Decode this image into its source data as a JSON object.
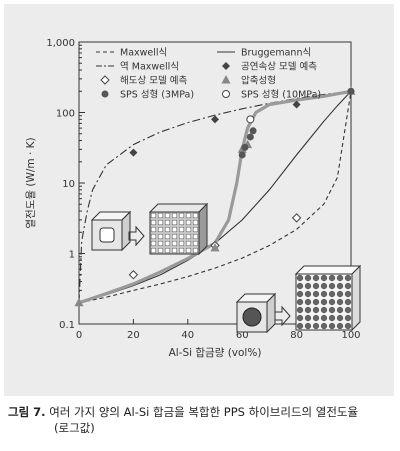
{
  "chart_data": {
    "type": "line",
    "y_scale": "log",
    "xlabel": "Al-Si 합금량 (vol%)",
    "ylabel": "열전도율 (W/m · K)",
    "xlim": [
      0,
      100
    ],
    "ylim": [
      0.1,
      1000
    ],
    "x_ticks": [
      "0",
      "20",
      "40",
      "60",
      "80",
      "100"
    ],
    "y_ticks": [
      "0.1",
      "1",
      "10",
      "100",
      "1,000"
    ],
    "grid": false,
    "legend_position": "top",
    "legend": [
      {
        "key": "maxwell",
        "label": "Maxwell식",
        "marker": "dashed-line"
      },
      {
        "key": "bruggemann",
        "label": "Bruggemann식",
        "marker": "solid-line"
      },
      {
        "key": "inv_maxwell",
        "label": "역 Maxwell식",
        "marker": "dashdot-line"
      },
      {
        "key": "cont",
        "label": "공연속상 모델 예측",
        "marker": "filled-diamond"
      },
      {
        "key": "disp",
        "label": "해도상 모델 예측",
        "marker": "open-diamond"
      },
      {
        "key": "press",
        "label": "압축성형",
        "marker": "filled-triangle"
      },
      {
        "key": "sps3",
        "label": "SPS 성형 (3MPa)",
        "marker": "filled-circle"
      },
      {
        "key": "sps10",
        "label": "SPS 성형 (10MPa)",
        "marker": "open-circle"
      }
    ],
    "series": [
      {
        "key": "maxwell",
        "type": "curve",
        "x": [
          0,
          10,
          20,
          30,
          40,
          50,
          60,
          70,
          80,
          90,
          95,
          100
        ],
        "y": [
          0.2,
          0.24,
          0.3,
          0.37,
          0.47,
          0.62,
          0.86,
          1.3,
          2.2,
          5,
          12,
          200
        ]
      },
      {
        "key": "bruggemann",
        "type": "curve",
        "x": [
          0,
          10,
          20,
          30,
          40,
          50,
          60,
          70,
          80,
          90,
          95,
          100
        ],
        "y": [
          0.2,
          0.26,
          0.35,
          0.5,
          0.8,
          1.4,
          3,
          8,
          25,
          75,
          125,
          200
        ]
      },
      {
        "key": "inv_maxwell",
        "type": "curve",
        "x": [
          0,
          1,
          3,
          5,
          10,
          20,
          30,
          40,
          50,
          60,
          70,
          80,
          90,
          100
        ],
        "y": [
          0.2,
          1.5,
          4,
          8,
          18,
          35,
          53,
          72,
          92,
          113,
          135,
          158,
          180,
          200
        ]
      },
      {
        "key": "experimental_fit",
        "type": "curve",
        "x": [
          0,
          10,
          20,
          30,
          40,
          50,
          55,
          58,
          60,
          62,
          65,
          70,
          80,
          90,
          100
        ],
        "y": [
          0.2,
          0.27,
          0.37,
          0.55,
          0.85,
          1.4,
          3,
          10,
          30,
          60,
          100,
          130,
          150,
          170,
          200
        ]
      },
      {
        "key": "cont",
        "type": "points",
        "x": [
          20,
          50,
          80
        ],
        "y": [
          27,
          80,
          130
        ]
      },
      {
        "key": "disp",
        "type": "points",
        "x": [
          20,
          50,
          80
        ],
        "y": [
          0.5,
          1.3,
          3.2
        ]
      },
      {
        "key": "press",
        "type": "points",
        "x": [
          0,
          50,
          60,
          62,
          100
        ],
        "y": [
          0.2,
          1.2,
          30,
          35,
          200
        ]
      },
      {
        "key": "sps3",
        "type": "points",
        "x": [
          60,
          61,
          63,
          64,
          100
        ],
        "y": [
          25,
          32,
          45,
          55,
          200
        ]
      },
      {
        "key": "sps10",
        "type": "points",
        "x": [
          63
        ],
        "y": [
          80
        ]
      }
    ]
  },
  "caption": {
    "label": "그림 7.",
    "text": "여러 가지 양의 Al-Si 합금을 복합한 PPS 하이브리드의 열전도율",
    "line2": "(로그값)"
  }
}
